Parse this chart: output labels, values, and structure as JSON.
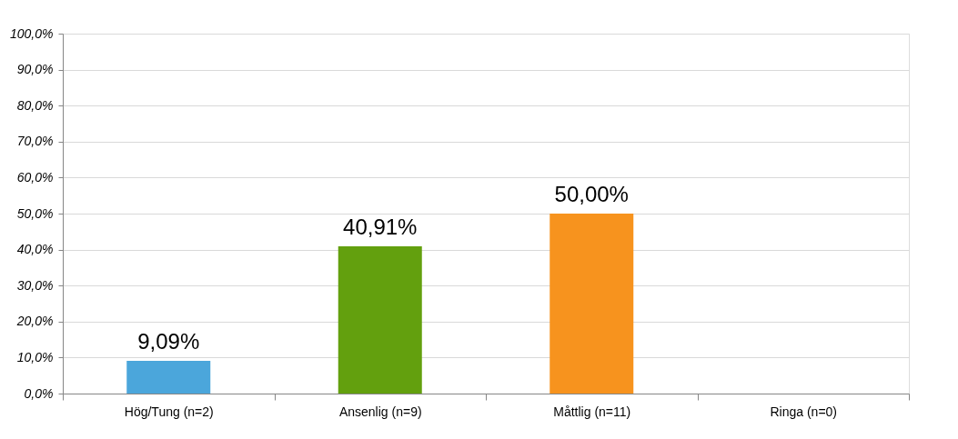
{
  "chart_data": {
    "type": "bar",
    "categories": [
      "Hög/Tung (n=2)",
      "Ansenlig (n=9)",
      "Måttlig (n=11)",
      "Ringa (n=0)"
    ],
    "values": [
      9.09,
      40.91,
      50.0,
      0
    ],
    "colors": [
      "#4ba6db",
      "#63a00e",
      "#f7931e",
      "#7f7f7f"
    ],
    "value_labels": [
      "9,09%",
      "40,91%",
      "50,00%",
      null
    ],
    "ylim": [
      0,
      100
    ],
    "yticks": [
      {
        "value": 0,
        "label": "0,0%"
      },
      {
        "value": 10,
        "label": "10,0%"
      },
      {
        "value": 20,
        "label": "20,0%"
      },
      {
        "value": 30,
        "label": "30,0%"
      },
      {
        "value": 40,
        "label": "40,0%"
      },
      {
        "value": 50,
        "label": "50,0%"
      },
      {
        "value": 60,
        "label": "60,0%"
      },
      {
        "value": 70,
        "label": "70,0%"
      },
      {
        "value": 80,
        "label": "80,0%"
      },
      {
        "value": 90,
        "label": "90,0%"
      },
      {
        "value": 100,
        "label": "100,0%"
      }
    ],
    "grid": "y"
  }
}
